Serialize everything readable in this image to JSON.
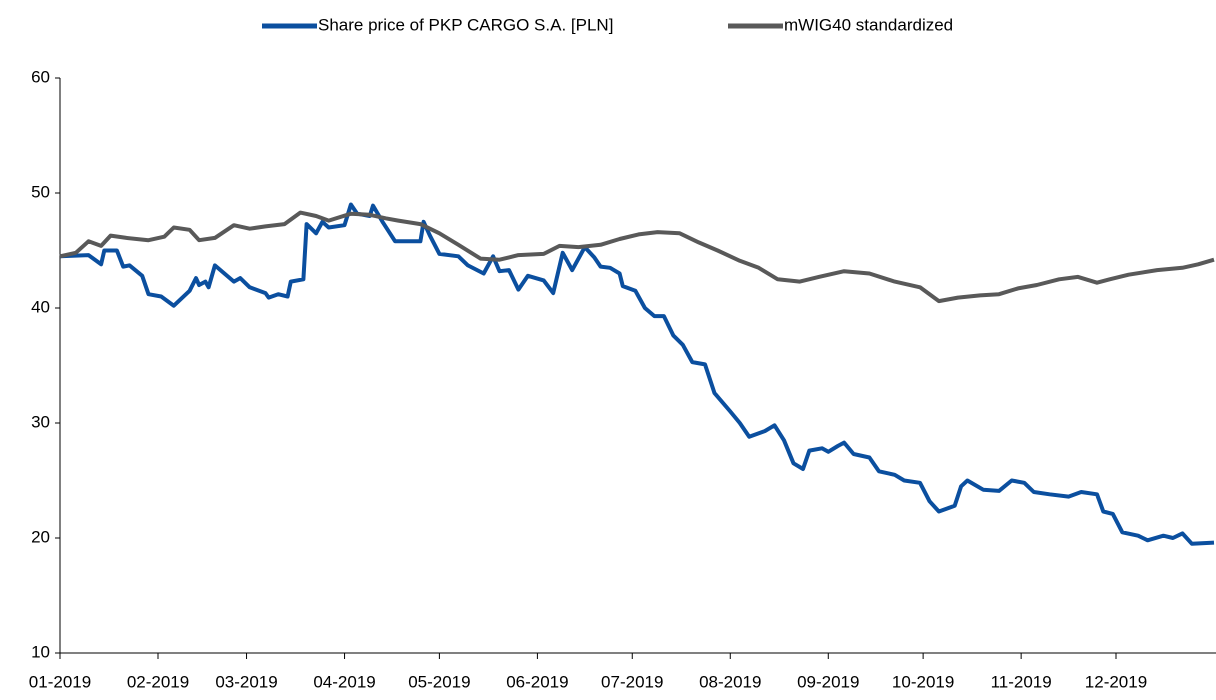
{
  "chart_data": {
    "type": "line",
    "xlim": [
      0,
      365
    ],
    "xticks": [
      {
        "value": 0,
        "label": "01-2019"
      },
      {
        "value": 31,
        "label": "02-2019"
      },
      {
        "value": 59,
        "label": "03-2019"
      },
      {
        "value": 90,
        "label": "04-2019"
      },
      {
        "value": 120,
        "label": "05-2019"
      },
      {
        "value": 151,
        "label": "06-2019"
      },
      {
        "value": 181,
        "label": "07-2019"
      },
      {
        "value": 212,
        "label": "08-2019"
      },
      {
        "value": 243,
        "label": "09-2019"
      },
      {
        "value": 273,
        "label": "10-2019"
      },
      {
        "value": 304,
        "label": "11-2019"
      },
      {
        "value": 334,
        "label": "12-2019"
      }
    ],
    "ylim": [
      10,
      60
    ],
    "yticks": [
      10,
      20,
      30,
      40,
      50,
      60
    ],
    "grid": false,
    "legend": "top",
    "series": [
      {
        "name": "Share price of PKP CARGO S.A. [PLN]",
        "color": "#0b4f9f",
        "x": [
          0,
          9,
          13,
          14,
          18,
          20,
          22,
          26,
          28,
          32,
          36,
          41,
          43,
          44,
          46,
          47,
          49,
          52,
          55,
          57,
          60,
          65,
          66,
          69,
          72,
          73,
          77,
          78,
          81,
          83,
          85,
          90,
          92,
          94,
          98,
          99,
          102,
          106,
          114,
          115,
          117,
          120,
          126,
          129,
          134,
          137,
          139,
          142,
          145,
          148,
          153,
          156,
          159,
          162,
          166,
          169,
          171,
          174,
          177,
          178,
          182,
          185,
          188,
          191,
          194,
          197,
          200,
          204,
          207,
          212,
          215,
          218,
          223,
          226,
          229,
          232,
          235,
          237,
          241,
          243,
          246,
          248,
          251,
          256,
          259,
          264,
          267,
          272,
          275,
          278,
          283,
          285,
          287,
          292,
          297,
          301,
          305,
          308,
          313,
          319,
          323,
          328,
          330,
          333,
          336,
          341,
          344,
          349,
          352,
          355,
          358,
          365
        ],
        "values": [
          44.5,
          44.6,
          43.8,
          45.0,
          45.0,
          43.6,
          43.7,
          42.8,
          41.2,
          41.0,
          40.2,
          41.5,
          42.6,
          42.0,
          42.3,
          41.8,
          43.7,
          43.0,
          42.3,
          42.6,
          41.8,
          41.3,
          40.9,
          41.2,
          41.0,
          42.3,
          42.5,
          47.3,
          46.5,
          47.5,
          47.0,
          47.2,
          49.0,
          48.2,
          48.0,
          48.9,
          47.5,
          45.8,
          45.8,
          47.5,
          46.3,
          44.7,
          44.5,
          43.7,
          43.0,
          44.5,
          43.2,
          43.3,
          41.6,
          42.8,
          42.4,
          41.3,
          44.8,
          43.3,
          45.3,
          44.4,
          43.6,
          43.5,
          43.0,
          41.9,
          41.5,
          40.0,
          39.3,
          39.3,
          37.6,
          36.8,
          35.3,
          35.1,
          32.6,
          31.0,
          30.0,
          28.8,
          29.3,
          29.8,
          28.5,
          26.5,
          26.0,
          27.6,
          27.8,
          27.5,
          28.0,
          28.3,
          27.3,
          27.0,
          25.8,
          25.5,
          25.0,
          24.8,
          23.2,
          22.3,
          22.8,
          24.5,
          25.0,
          24.2,
          24.1,
          25.0,
          24.8,
          24.0,
          23.8,
          23.6,
          24.0,
          23.8,
          22.3,
          22.1,
          20.5,
          20.2,
          19.8,
          20.2,
          20.0,
          20.4,
          19.5,
          19.6
        ]
      },
      {
        "name": "mWIG40 standardized",
        "color": "#595959",
        "x": [
          0,
          5,
          9,
          13,
          16,
          21,
          28,
          33,
          36,
          41,
          44,
          49,
          55,
          60,
          65,
          71,
          76,
          81,
          85,
          92,
          98,
          103,
          107,
          114,
          120,
          126,
          133,
          139,
          145,
          153,
          158,
          164,
          171,
          177,
          183,
          189,
          196,
          202,
          208,
          215,
          221,
          227,
          234,
          240,
          248,
          256,
          264,
          272,
          278,
          284,
          291,
          297,
          303,
          309,
          316,
          322,
          328,
          332,
          338,
          347,
          355,
          360,
          365
        ],
        "values": [
          44.5,
          44.8,
          45.8,
          45.4,
          46.3,
          46.1,
          45.9,
          46.2,
          47.0,
          46.8,
          45.9,
          46.1,
          47.2,
          46.9,
          47.1,
          47.3,
          48.3,
          48.0,
          47.6,
          48.2,
          48.1,
          47.8,
          47.6,
          47.3,
          46.5,
          45.5,
          44.3,
          44.2,
          44.6,
          44.7,
          45.4,
          45.3,
          45.5,
          46.0,
          46.4,
          46.6,
          46.5,
          45.7,
          45.0,
          44.1,
          43.5,
          42.5,
          42.3,
          42.7,
          43.2,
          43.0,
          42.3,
          41.8,
          40.6,
          40.9,
          41.1,
          41.2,
          41.7,
          42.0,
          42.5,
          42.7,
          42.2,
          42.5,
          42.9,
          43.3,
          43.5,
          43.8,
          44.2
        ]
      }
    ]
  }
}
